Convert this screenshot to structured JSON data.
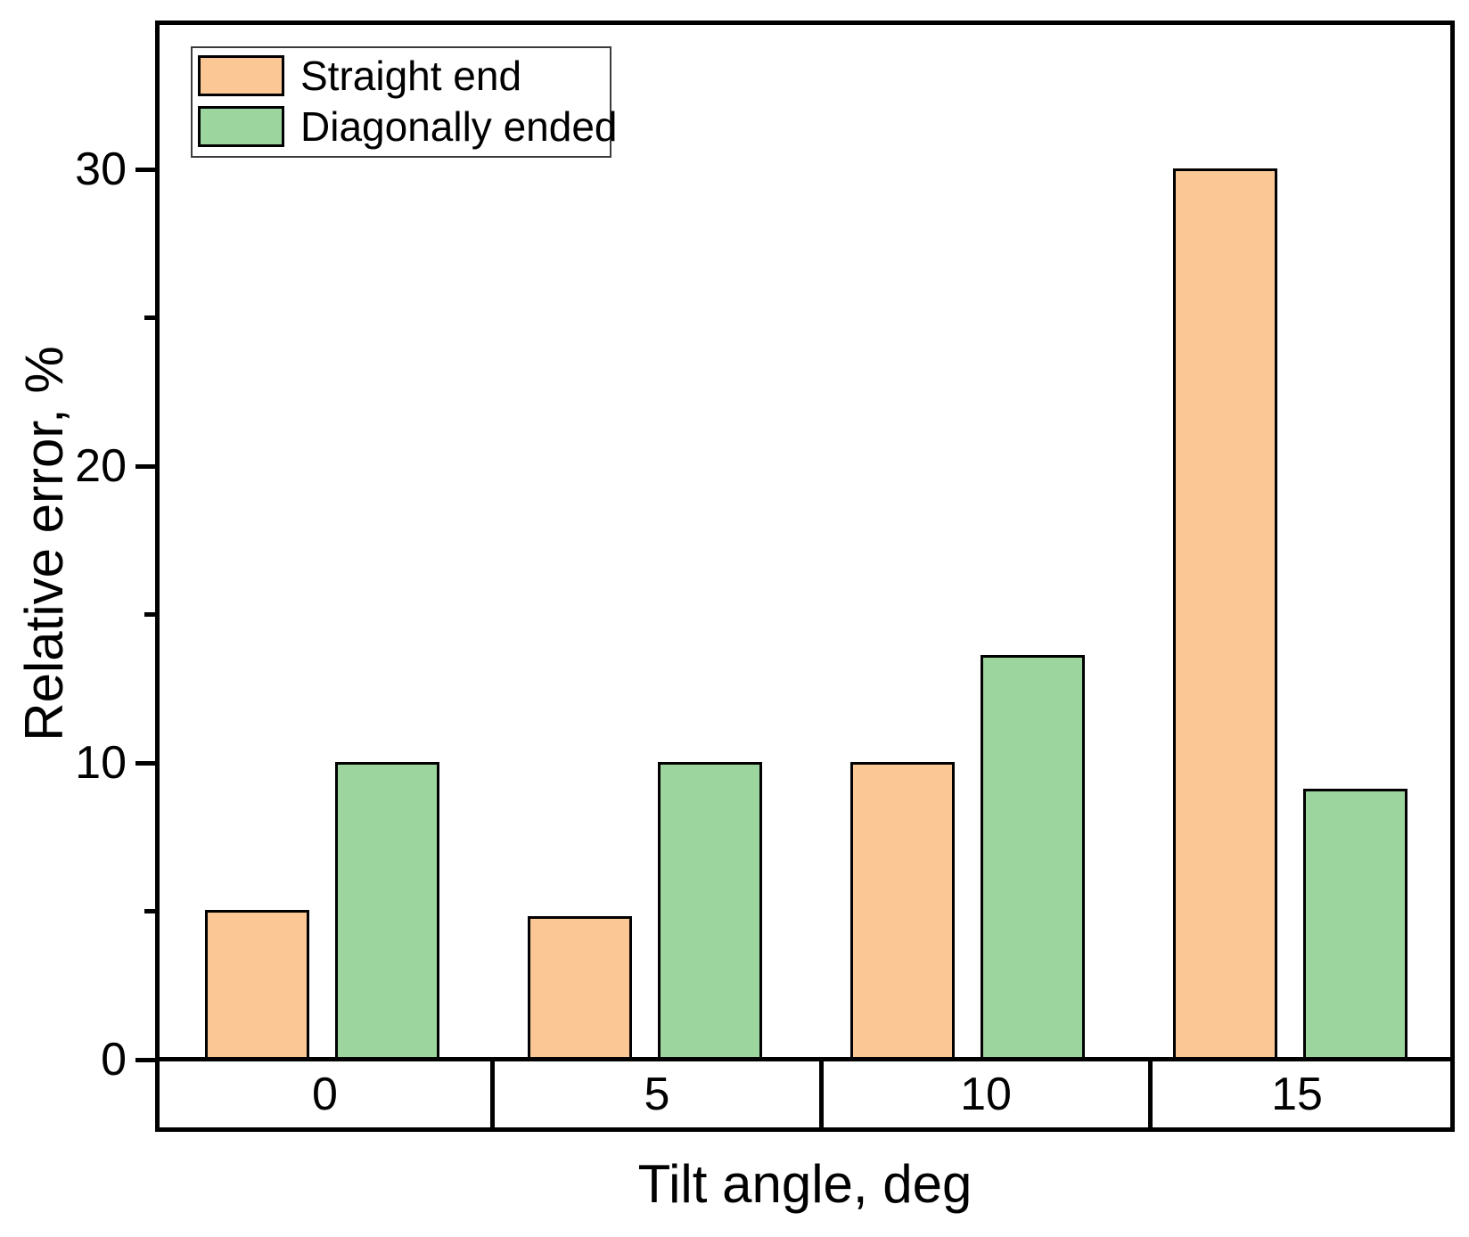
{
  "chart_data": {
    "type": "bar",
    "title": "",
    "xlabel": "Tilt angle, deg",
    "ylabel": "Relative error, %",
    "categories": [
      "0",
      "5",
      "10",
      "15"
    ],
    "series": [
      {
        "name": "Straight end",
        "color": "#FBC795",
        "values": [
          5,
          4.8,
          10,
          30
        ]
      },
      {
        "name": "Diagonally ended",
        "color": "#9CD69E",
        "values": [
          10,
          10,
          13.6,
          9.1
        ]
      }
    ],
    "ylim": [
      0,
      35
    ],
    "y_major_ticks": [
      0,
      10,
      20,
      30
    ],
    "y_minor_ticks": [
      5,
      15,
      25
    ],
    "grid": "off",
    "legend_position": "top-left",
    "bar_edge_color": "#000000",
    "frame_color": "#000000"
  }
}
